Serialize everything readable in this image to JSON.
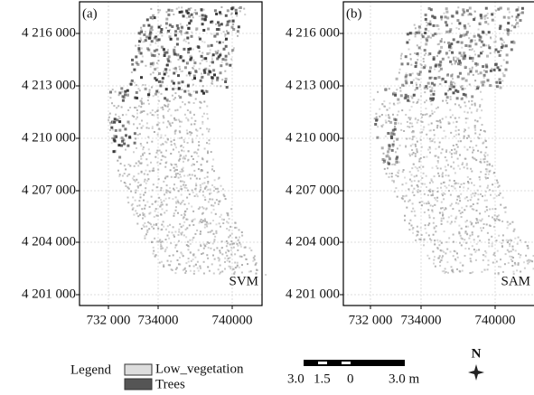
{
  "panels": [
    {
      "label": "(a)",
      "method": "SVM",
      "yticks": [
        "4 216 000",
        "4 213 000",
        "4 210 000",
        "4 207 000",
        "4 204 000",
        "4 201 000"
      ],
      "xticks": [
        "732 000",
        "734000",
        "740000"
      ]
    },
    {
      "label": "(b)",
      "method": "SAM",
      "yticks": [
        "4 216 000",
        "4 213 000",
        "4 210 000",
        "4 207 000",
        "4 204 000",
        "4 201 000"
      ],
      "xticks": [
        "732 000",
        "734000",
        "740000"
      ]
    }
  ],
  "legend": {
    "title": "Legend",
    "items": [
      "Low_vegetation",
      "Trees"
    ]
  },
  "scale_bar": {
    "labels": [
      "3.0",
      "1.5",
      "0",
      "3.0 m"
    ]
  },
  "north": "N"
}
